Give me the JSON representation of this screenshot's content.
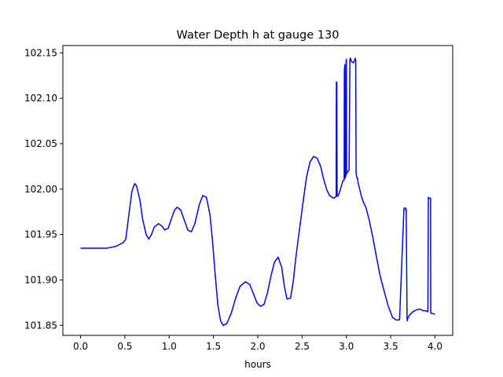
{
  "chart_data": {
    "type": "line",
    "title": "Water Depth h at gauge 130",
    "xlabel": "hours",
    "ylabel": "",
    "xlim": [
      -0.2,
      4.2
    ],
    "ylim": [
      101.839,
      102.158
    ],
    "xticks": [
      0.0,
      0.5,
      1.0,
      1.5,
      2.0,
      2.5,
      3.0,
      3.5,
      4.0
    ],
    "xtick_labels": [
      "0.0",
      "0.5",
      "1.0",
      "1.5",
      "2.0",
      "2.5",
      "3.0",
      "3.5",
      "4.0"
    ],
    "yticks": [
      101.85,
      101.9,
      101.95,
      102.0,
      102.05,
      102.1,
      102.15
    ],
    "ytick_labels": [
      "101.85",
      "101.90",
      "101.95",
      "102.00",
      "102.05",
      "102.10",
      "102.15"
    ],
    "grid": false,
    "series": [
      {
        "name": "",
        "color": "#0000ff",
        "x": [
          0.0,
          0.1,
          0.2,
          0.3,
          0.4,
          0.48,
          0.51,
          0.54,
          0.58,
          0.61,
          0.63,
          0.67,
          0.7,
          0.74,
          0.77,
          0.8,
          0.83,
          0.88,
          0.92,
          0.95,
          0.99,
          1.02,
          1.06,
          1.09,
          1.13,
          1.17,
          1.21,
          1.25,
          1.29,
          1.34,
          1.38,
          1.42,
          1.46,
          1.49,
          1.52,
          1.55,
          1.58,
          1.61,
          1.65,
          1.7,
          1.75,
          1.8,
          1.86,
          1.91,
          1.95,
          1.99,
          2.03,
          2.07,
          2.11,
          2.15,
          2.19,
          2.23,
          2.27,
          2.3,
          2.33,
          2.37,
          2.4,
          2.43,
          2.47,
          2.51,
          2.55,
          2.59,
          2.63,
          2.67,
          2.71,
          2.74,
          2.78,
          2.81,
          2.84,
          2.86,
          2.885,
          2.887,
          2.892,
          2.895,
          2.91,
          2.93,
          2.96,
          2.975,
          2.977,
          2.982,
          2.985,
          2.995,
          2.997,
          3.0,
          3.002,
          3.03,
          3.04,
          3.045,
          3.06,
          3.08,
          3.1,
          3.105,
          3.11,
          3.12,
          3.127,
          3.13,
          3.15,
          3.17,
          3.19,
          3.22,
          3.26,
          3.3,
          3.34,
          3.38,
          3.42,
          3.47,
          3.52,
          3.56,
          3.6,
          3.65,
          3.67,
          3.672,
          3.675,
          3.685,
          3.688,
          3.69,
          3.71,
          3.75,
          3.79,
          3.83,
          3.87,
          3.9,
          3.92,
          3.925,
          3.93,
          3.95,
          3.952,
          3.96,
          3.98,
          4.0
        ],
        "y": [
          101.935,
          101.935,
          101.935,
          101.935,
          101.937,
          101.941,
          101.945,
          101.968,
          101.998,
          102.006,
          102.004,
          101.988,
          101.967,
          101.95,
          101.945,
          101.95,
          101.958,
          101.962,
          101.959,
          101.955,
          101.957,
          101.966,
          101.977,
          101.98,
          101.977,
          101.966,
          101.955,
          101.953,
          101.962,
          101.983,
          101.993,
          101.991,
          101.972,
          101.942,
          101.905,
          101.872,
          101.855,
          101.85,
          101.852,
          101.863,
          101.88,
          101.893,
          101.898,
          101.895,
          101.885,
          101.875,
          101.871,
          101.873,
          101.886,
          101.905,
          101.92,
          101.925,
          101.914,
          101.893,
          101.879,
          101.88,
          101.898,
          101.925,
          101.955,
          101.985,
          102.013,
          102.03,
          102.036,
          102.034,
          102.025,
          102.012,
          101.999,
          101.993,
          101.991,
          101.99,
          101.992,
          102.118,
          102.117,
          101.992,
          101.993,
          101.999,
          102.009,
          102.01,
          102.13,
          102.137,
          102.012,
          102.015,
          102.141,
          102.143,
          102.017,
          102.021,
          102.143,
          102.144,
          102.14,
          102.139,
          102.144,
          102.142,
          102.017,
          102.012,
          102.012,
          102.008,
          102.0,
          101.992,
          101.986,
          101.98,
          101.965,
          101.946,
          101.925,
          101.905,
          101.89,
          101.872,
          101.859,
          101.856,
          101.856,
          101.979,
          101.979,
          101.976,
          101.978,
          101.856,
          101.855,
          101.857,
          101.861,
          101.865,
          101.867,
          101.868,
          101.866,
          101.866,
          101.865,
          101.991,
          101.99,
          101.99,
          101.864,
          101.863,
          101.863,
          101.862
        ]
      }
    ]
  }
}
